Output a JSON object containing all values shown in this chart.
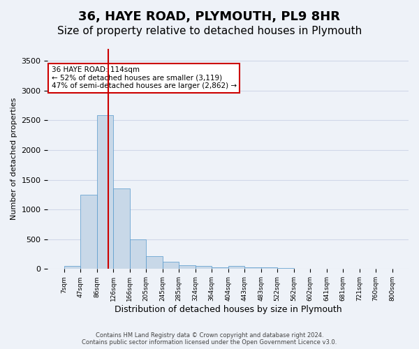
{
  "title": "36, HAYE ROAD, PLYMOUTH, PL9 8HR",
  "subtitle": "Size of property relative to detached houses in Plymouth",
  "xlabel": "Distribution of detached houses by size in Plymouth",
  "ylabel": "Number of detached properties",
  "bins": [
    "7sqm",
    "47sqm",
    "86sqm",
    "126sqm",
    "166sqm",
    "205sqm",
    "245sqm",
    "285sqm",
    "324sqm",
    "364sqm",
    "404sqm",
    "443sqm",
    "483sqm",
    "522sqm",
    "562sqm",
    "602sqm",
    "641sqm",
    "681sqm",
    "721sqm",
    "760sqm",
    "800sqm"
  ],
  "bar_values": [
    50,
    1250,
    2580,
    1350,
    500,
    220,
    120,
    60,
    50,
    30,
    50,
    30,
    30,
    15,
    5,
    5,
    3,
    2,
    1,
    1,
    0
  ],
  "bar_color": "#c8d8e8",
  "bar_edge_color": "#5599cc",
  "vline_x": 2,
  "vline_color": "#cc0000",
  "ylim": [
    0,
    3700
  ],
  "yticks": [
    0,
    500,
    1000,
    1500,
    2000,
    2500,
    3000,
    3500
  ],
  "annotation_text": "36 HAYE ROAD: 114sqm\n← 52% of detached houses are smaller (3,119)\n47% of semi-detached houses are larger (2,862) →",
  "annotation_box_color": "#ffffff",
  "annotation_box_edge_color": "#cc0000",
  "grid_color": "#d0d8e8",
  "background_color": "#eef2f8",
  "footer_text": "Contains HM Land Registry data © Crown copyright and database right 2024.\nContains public sector information licensed under the Open Government Licence v3.0.",
  "title_fontsize": 13,
  "subtitle_fontsize": 11
}
